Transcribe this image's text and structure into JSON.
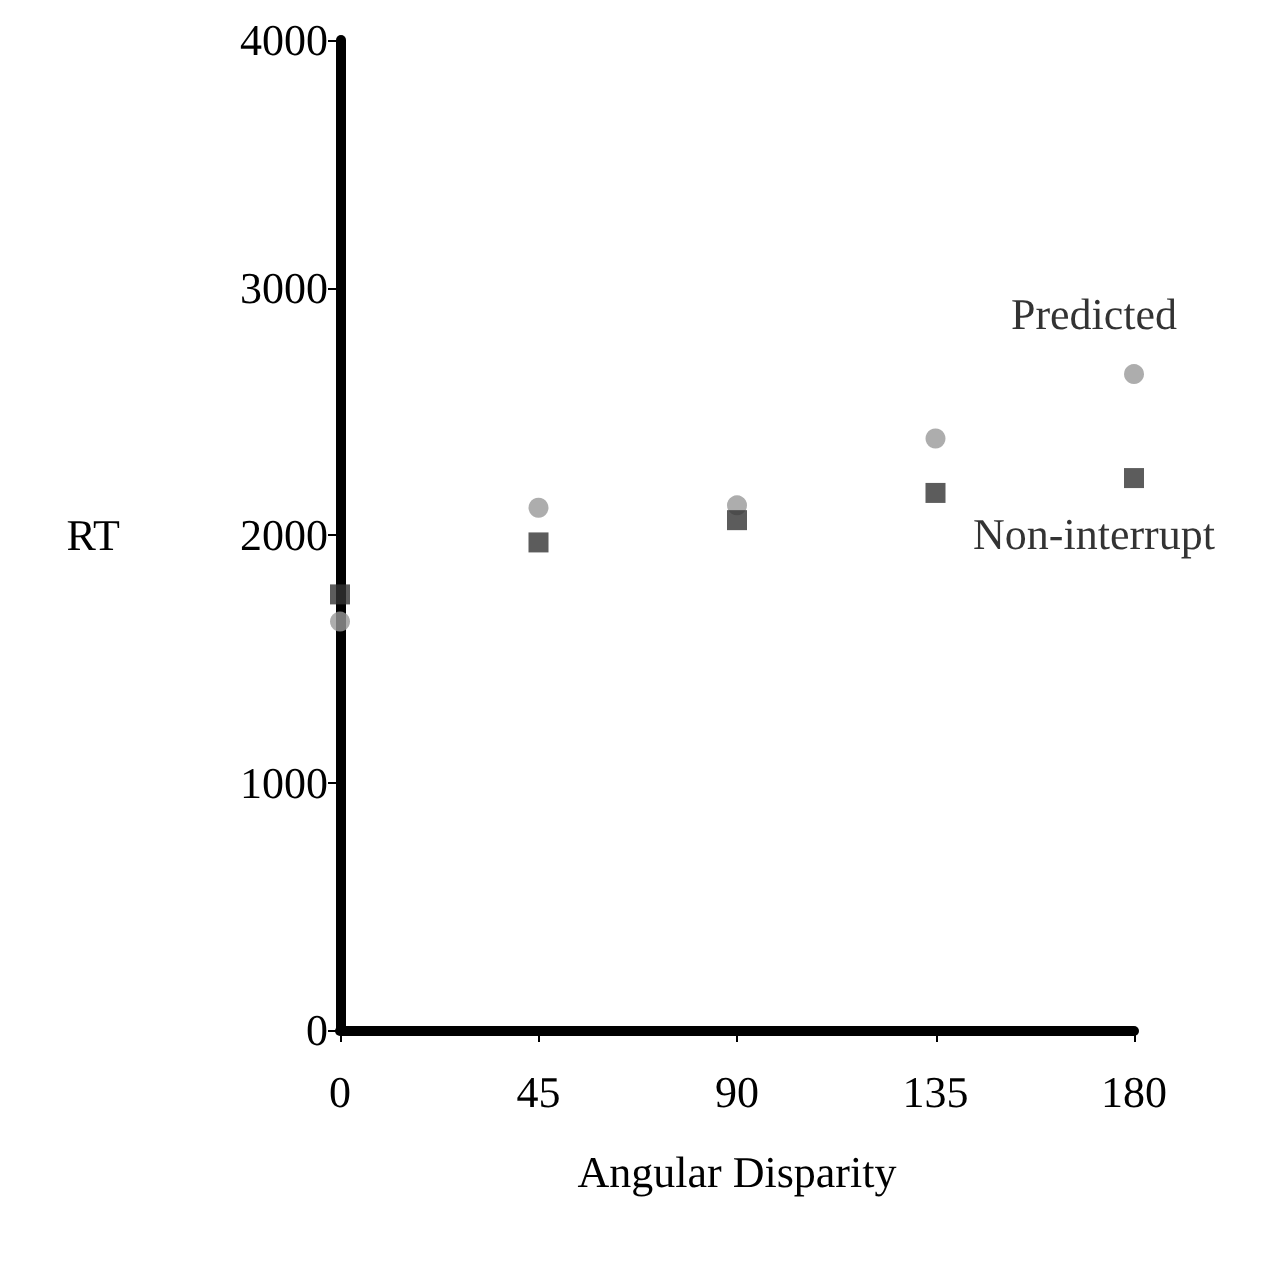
{
  "chart_data": {
    "type": "scatter",
    "xlabel": "Angular Disparity",
    "ylabel": "RT",
    "x": [
      0,
      45,
      90,
      135,
      180
    ],
    "series": [
      {
        "name": "Predicted",
        "color": "#999999",
        "marker": "circle",
        "values": [
          1650,
          2110,
          2120,
          2390,
          2650
        ]
      },
      {
        "name": "Non-interrupt",
        "color": "#333333",
        "marker": "square",
        "values": [
          1760,
          1970,
          2060,
          2170,
          2230
        ]
      }
    ],
    "xlim": [
      0,
      180
    ],
    "xticks": [
      0,
      45,
      90,
      135,
      180
    ],
    "ylim": [
      0,
      4000
    ],
    "yticks": [
      0,
      1000,
      2000,
      3000,
      4000
    ],
    "grid": false,
    "legend": false
  }
}
